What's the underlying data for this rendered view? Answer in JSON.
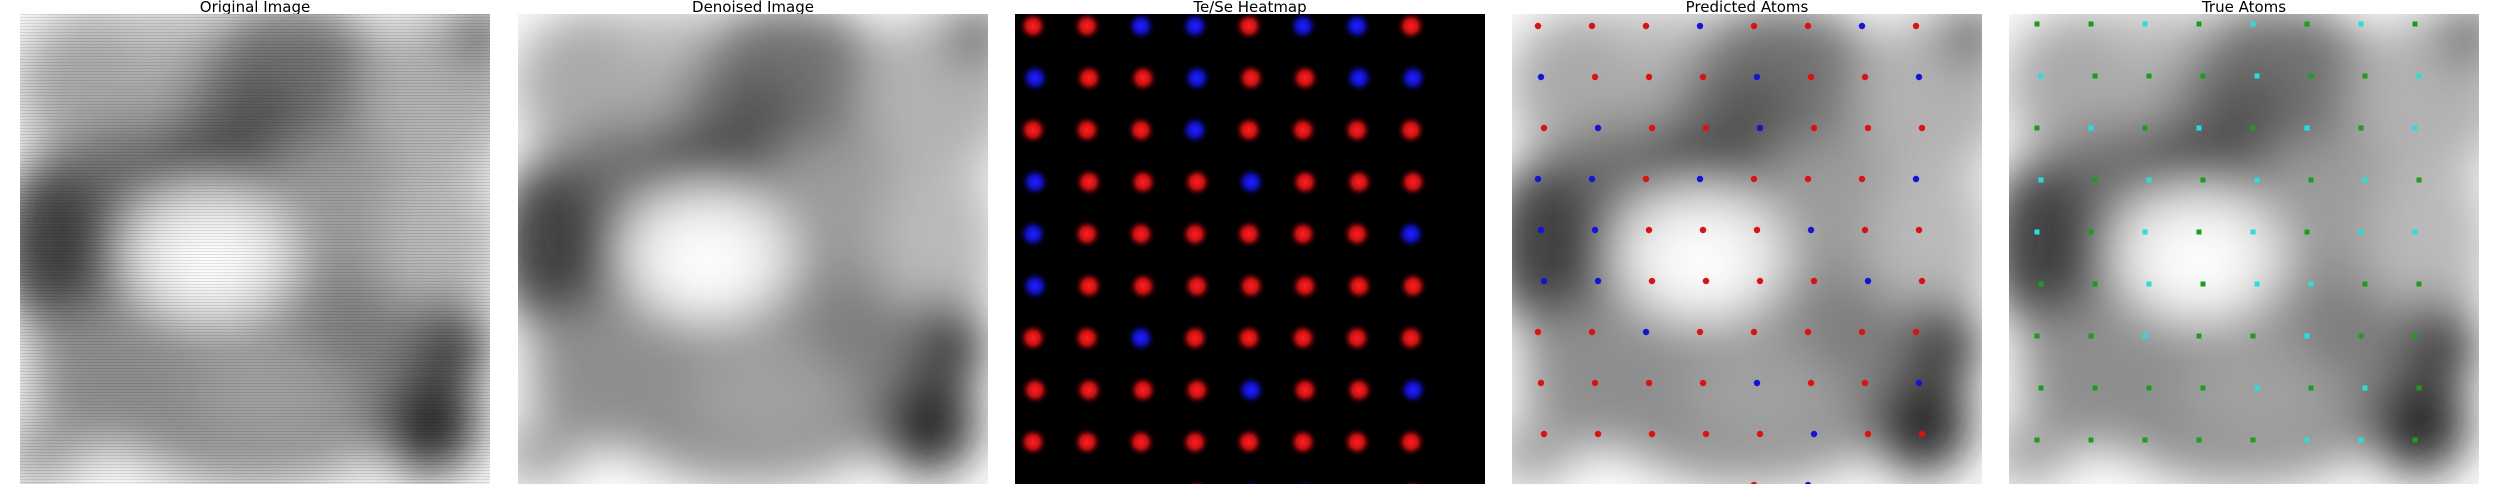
{
  "panels": [
    {
      "title": "Original Image"
    },
    {
      "title": "Denoised Image"
    },
    {
      "title": "Te/Se Heatmap"
    },
    {
      "title": "Predicted Atoms"
    },
    {
      "title": "True Atoms"
    }
  ],
  "colors": {
    "te": "#e01010",
    "se": "#1414d8",
    "true_te": "#1a9e1a",
    "true_se": "#22e0e0"
  }
}
